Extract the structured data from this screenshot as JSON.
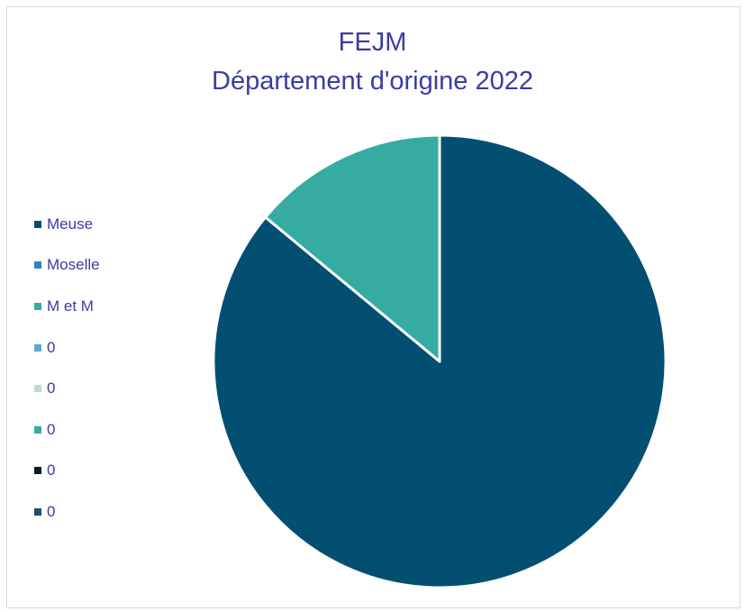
{
  "chart_data": {
    "type": "pie",
    "title_line1": "FEJM",
    "title_line2": "Département d'origine 2022",
    "series": [
      {
        "name": "Meuse",
        "value": 86,
        "color": "#034f71"
      },
      {
        "name": "Moselle",
        "value": 0,
        "color": "#2c82c2"
      },
      {
        "name": "M et M",
        "value": 14,
        "color": "#35aba2"
      },
      {
        "name": "0",
        "value": 0,
        "color": "#62a8d3"
      },
      {
        "name": "0",
        "value": 0,
        "color": "#b9dfcc"
      },
      {
        "name": "0",
        "value": 0,
        "color": "#35aba2"
      },
      {
        "name": "0",
        "value": 0,
        "color": "#041d2f"
      },
      {
        "name": "0",
        "value": 0,
        "color": "#1c4c72"
      }
    ],
    "legend_position": "left"
  }
}
